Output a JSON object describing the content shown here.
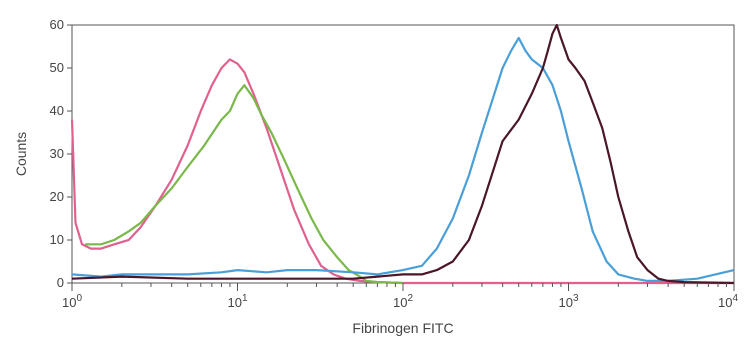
{
  "chart_data": {
    "type": "line",
    "xlabel": "Fibrinogen FITC",
    "ylabel": "Counts",
    "x_scale": "log",
    "xlim": [
      1,
      10000
    ],
    "ylim": [
      0,
      60
    ],
    "x_ticks": [
      {
        "value": 1,
        "base": "10",
        "exp": "0"
      },
      {
        "value": 10,
        "base": "10",
        "exp": "1"
      },
      {
        "value": 100,
        "base": "10",
        "exp": "2"
      },
      {
        "value": 1000,
        "base": "10",
        "exp": "3"
      },
      {
        "value": 10000,
        "base": "10",
        "exp": "4"
      }
    ],
    "y_ticks": [
      0,
      10,
      20,
      30,
      40,
      50,
      60
    ],
    "grid": false,
    "legend": "none",
    "series": [
      {
        "color": "#e0608f",
        "x": [
          1,
          1.05,
          1.15,
          1.3,
          1.5,
          1.8,
          2.2,
          2.6,
          3.2,
          4,
          5,
          6,
          7,
          8,
          9,
          10,
          11,
          12.5,
          15,
          18,
          22,
          27,
          32,
          38,
          45,
          55,
          70,
          100,
          1000,
          10000
        ],
        "y": [
          38,
          14,
          9,
          8,
          8,
          9,
          10,
          13,
          18,
          24,
          32,
          40,
          46,
          50,
          52,
          51,
          49,
          44,
          36,
          27,
          17,
          9,
          4,
          2,
          1,
          0.5,
          0.2,
          0,
          0,
          0
        ]
      },
      {
        "color": "#7ab84a",
        "x": [
          1.2,
          1.5,
          1.8,
          2.2,
          2.6,
          3.2,
          4,
          5,
          6.3,
          8,
          9,
          10,
          11,
          12.5,
          14,
          16,
          19,
          23,
          28,
          33,
          40,
          47,
          55,
          60,
          70,
          100
        ],
        "y": [
          9,
          9,
          10,
          12,
          14,
          18,
          22,
          27,
          32,
          38,
          40,
          44,
          46,
          43,
          39,
          35,
          29,
          22,
          15,
          10,
          6,
          3,
          1.5,
          0.5,
          0.2,
          0
        ]
      },
      {
        "color": "#4a9fd8",
        "x": [
          1,
          1.5,
          2,
          3,
          5,
          8,
          10,
          15,
          20,
          30,
          50,
          70,
          100,
          130,
          160,
          200,
          250,
          300,
          350,
          400,
          450,
          500,
          550,
          600,
          700,
          800,
          900,
          1000,
          1200,
          1400,
          1700,
          2000,
          2500,
          3000,
          4000,
          6000,
          10000
        ],
        "y": [
          2,
          1.5,
          2,
          2,
          2,
          2.5,
          3,
          2.5,
          3,
          3,
          2.5,
          2,
          3,
          4,
          8,
          15,
          25,
          35,
          43,
          50,
          54,
          57,
          54,
          52,
          50,
          46,
          40,
          33,
          22,
          12,
          5,
          2,
          1,
          0.5,
          0.5,
          1,
          3
        ]
      },
      {
        "color": "#4a1628",
        "x": [
          1,
          2,
          5,
          10,
          20,
          50,
          100,
          130,
          160,
          200,
          250,
          300,
          350,
          400,
          500,
          600,
          700,
          750,
          800,
          850,
          900,
          1000,
          1100,
          1250,
          1400,
          1600,
          1800,
          2000,
          2300,
          2600,
          3000,
          3500,
          4000,
          5000,
          10000
        ],
        "y": [
          1,
          1.5,
          1,
          1,
          1,
          1,
          2,
          2,
          3,
          5,
          10,
          18,
          26,
          33,
          38,
          44,
          50,
          54,
          58,
          60,
          57,
          52,
          50,
          47,
          42,
          36,
          28,
          20,
          12,
          6,
          3,
          1,
          0.5,
          0.2,
          0
        ]
      }
    ]
  }
}
